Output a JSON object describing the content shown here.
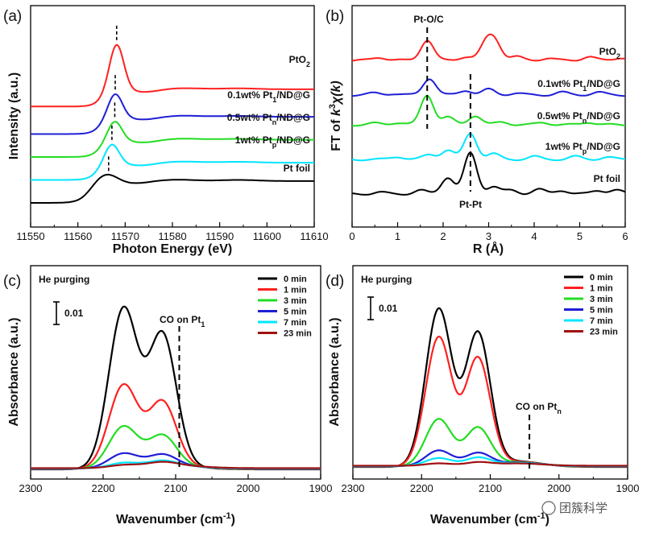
{
  "watermark": "团簇科学",
  "chart_data": [
    {
      "panel": "(a)",
      "type": "line",
      "xlabel": "Photon Energy (eV)",
      "ylabel": "Intensity (a.u.)",
      "xlim": [
        11550,
        11610
      ],
      "xticks": [
        11550,
        11560,
        11570,
        11580,
        11590,
        11600,
        11610
      ],
      "series": [
        {
          "name": "Pt foil",
          "color": "#000000",
          "peak": 11566.5,
          "offset": 0.0
        },
        {
          "name": "1wt% Pt_p/ND@G",
          "color": "#00e5ff",
          "peak": 11567.2,
          "offset": 1.0
        },
        {
          "name": "0.5wt% Pt_n/ND@G",
          "color": "#22dd22",
          "peak": 11567.8,
          "offset": 2.0
        },
        {
          "name": "0.1wt% Pt_1/ND@G",
          "color": "#1f1fd6",
          "peak": 11567.9,
          "offset": 3.0
        },
        {
          "name": "PtO_2",
          "color": "#ff2020",
          "peak": 11568.2,
          "offset": 4.2
        }
      ],
      "labels": [
        {
          "main": "Pt foil",
          "sub": "",
          "tail": ""
        },
        {
          "main": "1wt% Pt",
          "sub": "p",
          "tail": "/ND@G"
        },
        {
          "main": "0.5wt% Pt",
          "sub": "n",
          "tail": "/ND@G"
        },
        {
          "main": "0.1wt% Pt",
          "sub": "1",
          "tail": "/ND@G"
        },
        {
          "main": "PtO",
          "sub": "2",
          "tail": ""
        }
      ]
    },
    {
      "panel": "(b)",
      "type": "line",
      "xlabel": "R (Å)",
      "ylabel_pre": "FT of ",
      "ylabel_k": "k",
      "ylabel_sup": "3",
      "ylabel_chi": "χ(k)",
      "xlim": [
        0,
        6
      ],
      "xticks": [
        0,
        1,
        2,
        3,
        4,
        5,
        6
      ],
      "annotations": [
        "Pt-O/C",
        "Pt-Pt"
      ],
      "dashed_lines_R": [
        1.65,
        2.6
      ],
      "labels": [
        {
          "main": "Pt foil",
          "sub": "",
          "tail": ""
        },
        {
          "main": "1wt% Pt",
          "sub": "p",
          "tail": "/ND@G"
        },
        {
          "main": "0.5wt% Pt",
          "sub": "n",
          "tail": "/ND@G"
        },
        {
          "main": "0.1wt% Pt",
          "sub": "1",
          "tail": "/ND@G"
        },
        {
          "main": "PtO",
          "sub": "2",
          "tail": ""
        }
      ]
    },
    {
      "panel": "(c)",
      "type": "line",
      "title": "He purging",
      "xlabel_main": "Wavenumber (cm",
      "xlabel_sup": "-1",
      "xlabel_end": ")",
      "ylabel": "Absorbance (a.u.)",
      "xlim": [
        2300,
        1900
      ],
      "xticks": [
        2300,
        2200,
        2100,
        2000,
        1900
      ],
      "scale_bar": "0.01",
      "annotation_main": "CO on Pt",
      "annotation_sub": "1",
      "dashed_line_x": 2095,
      "peaks_cm-1": [
        2172,
        2118
      ],
      "series": [
        {
          "name": "0 min",
          "color": "#000000",
          "amplitude": [
            1.0,
            0.82
          ]
        },
        {
          "name": "1 min",
          "color": "#ff2020",
          "amplitude": [
            0.52,
            0.4
          ]
        },
        {
          "name": "3 min",
          "color": "#22dd22",
          "amplitude": [
            0.26,
            0.19
          ]
        },
        {
          "name": "5 min",
          "color": "#1f1fd6",
          "amplitude": [
            0.09,
            0.07
          ]
        },
        {
          "name": "7 min",
          "color": "#00e5ff",
          "amplitude": [
            0.03,
            0.03
          ]
        },
        {
          "name": "23 min",
          "color": "#a01010",
          "amplitude": [
            0.015,
            0.02
          ]
        }
      ]
    },
    {
      "panel": "(d)",
      "type": "line",
      "title": "He purging",
      "xlabel_main": "Wavenumber (cm",
      "xlabel_sup": "-1",
      "xlabel_end": ")",
      "ylabel": "Absorbance (a.u.)",
      "xlim": [
        2300,
        1900
      ],
      "xticks": [
        2300,
        2200,
        2100,
        2000,
        1900
      ],
      "scale_bar": "0.01",
      "annotation_main": "CO on Pt",
      "annotation_sub": "n",
      "dashed_line_x": 2043,
      "peaks_cm-1": [
        2175,
        2118
      ],
      "series": [
        {
          "name": "0 min",
          "color": "#000000",
          "amplitude": [
            1.0,
            0.84
          ]
        },
        {
          "name": "1 min",
          "color": "#ff2020",
          "amplitude": [
            0.82,
            0.68
          ]
        },
        {
          "name": "3 min",
          "color": "#22dd22",
          "amplitude": [
            0.3,
            0.24
          ]
        },
        {
          "name": "5 min",
          "color": "#1f1fd6",
          "amplitude": [
            0.1,
            0.08
          ]
        },
        {
          "name": "7 min",
          "color": "#00e5ff",
          "amplitude": [
            0.05,
            0.05
          ]
        },
        {
          "name": "23 min",
          "color": "#a01010",
          "amplitude": [
            0.015,
            0.02
          ]
        }
      ]
    }
  ]
}
